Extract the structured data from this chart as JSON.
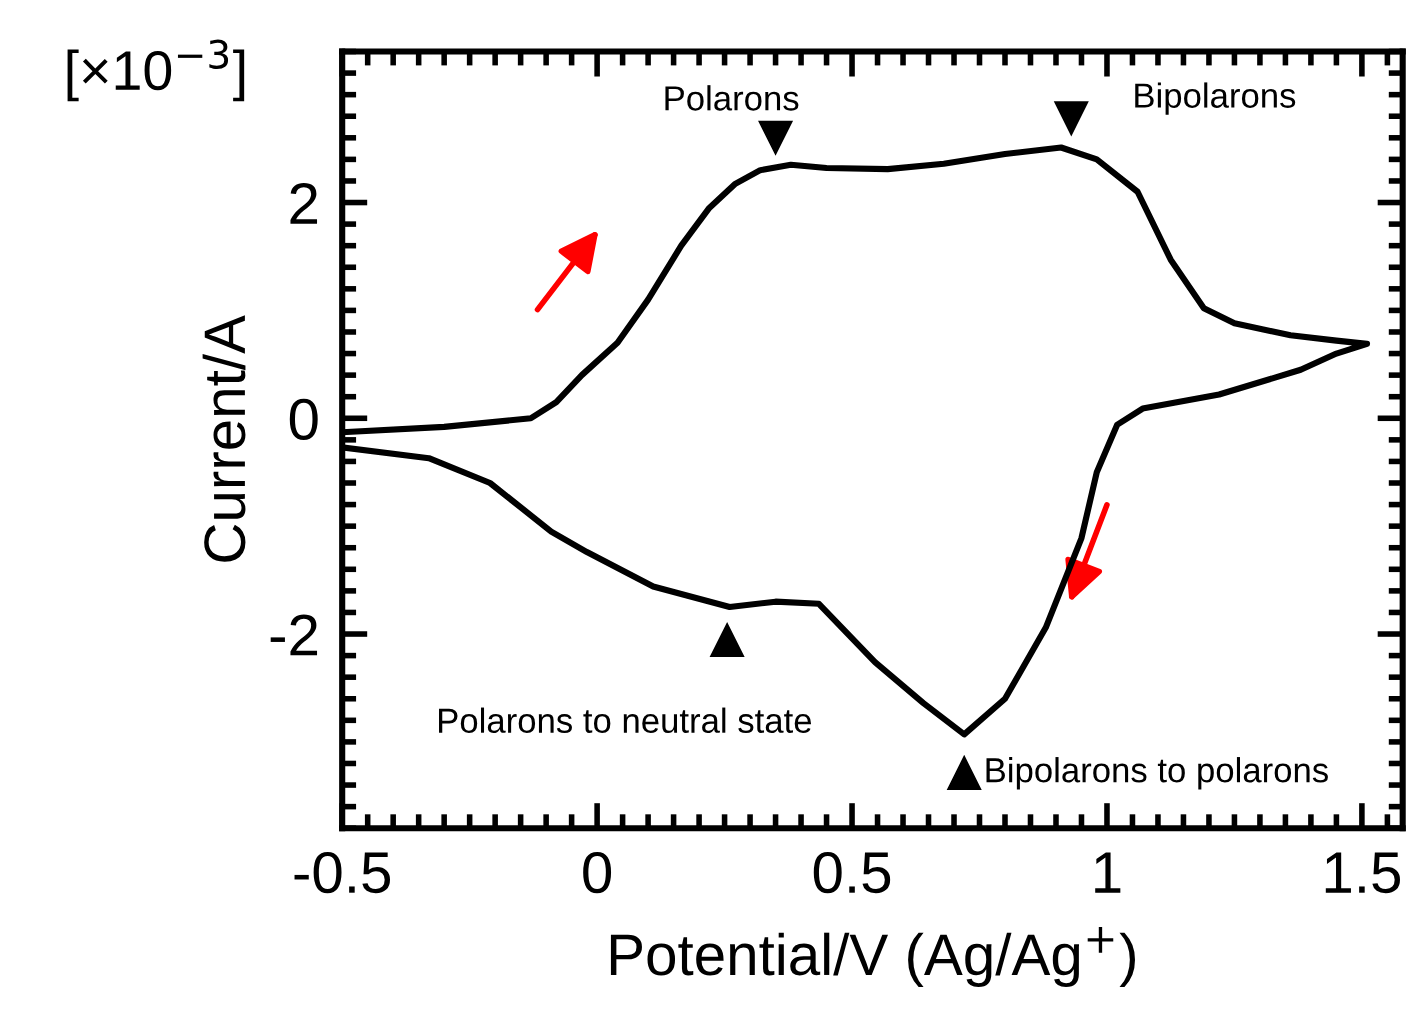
{
  "chart_data": {
    "type": "line",
    "xlabel": "Potential/V (Ag/Ag$^{+}$)",
    "ylabel": "Current/A",
    "xlim": [
      -0.5,
      1.58
    ],
    "ylim": [
      -3.8,
      3.4
    ],
    "xticks": [
      -0.5,
      0,
      0.5,
      1,
      1.5
    ],
    "yticks": [
      -2,
      0,
      2
    ],
    "series": [
      {
        "color": "#000000",
        "x": [
          -0.5,
          -0.3,
          -0.13,
          -0.08,
          -0.03,
          0.04,
          0.1,
          0.165,
          0.22,
          0.27,
          0.32,
          0.38,
          0.45,
          0.57,
          0.68,
          0.8,
          0.91,
          0.98,
          1.06,
          1.125,
          1.19,
          1.25,
          1.36,
          1.45,
          1.51,
          1.45,
          1.38,
          1.22,
          1.07,
          1.02,
          0.98,
          0.95,
          0.88,
          0.8,
          0.72,
          0.64,
          0.545,
          0.435,
          0.35,
          0.26,
          0.11,
          -0.02,
          -0.09,
          -0.21,
          -0.33,
          -0.5
        ],
        "values": [
          -0.13,
          -0.08,
          0,
          0.15,
          0.4,
          0.7,
          1.1,
          1.6,
          1.95,
          2.17,
          2.3,
          2.35,
          2.32,
          2.31,
          2.36,
          2.45,
          2.51,
          2.4,
          2.1,
          1.47,
          1.02,
          0.88,
          0.77,
          0.72,
          0.69,
          0.6,
          0.45,
          0.22,
          0.09,
          -0.06,
          -0.5,
          -1.11,
          -1.94,
          -2.6,
          -2.93,
          -2.64,
          -2.26,
          -1.72,
          -1.7,
          -1.75,
          -1.56,
          -1.24,
          -1.05,
          -0.6,
          -0.37,
          -0.27
        ]
      }
    ],
    "annotations": [
      "[×10$^{−3}$]",
      {
        "text": "Polarons",
        "x": 0.35,
        "y": 2.32
      },
      {
        "text": "Bipolarons",
        "x": 0.93,
        "y": 2.5
      },
      {
        "text": "Polarons to neutral state",
        "x": 0.255,
        "y": -1.75
      },
      {
        "text": "Bipolarons to polarons",
        "x": 0.72,
        "y": -2.93
      }
    ]
  }
}
